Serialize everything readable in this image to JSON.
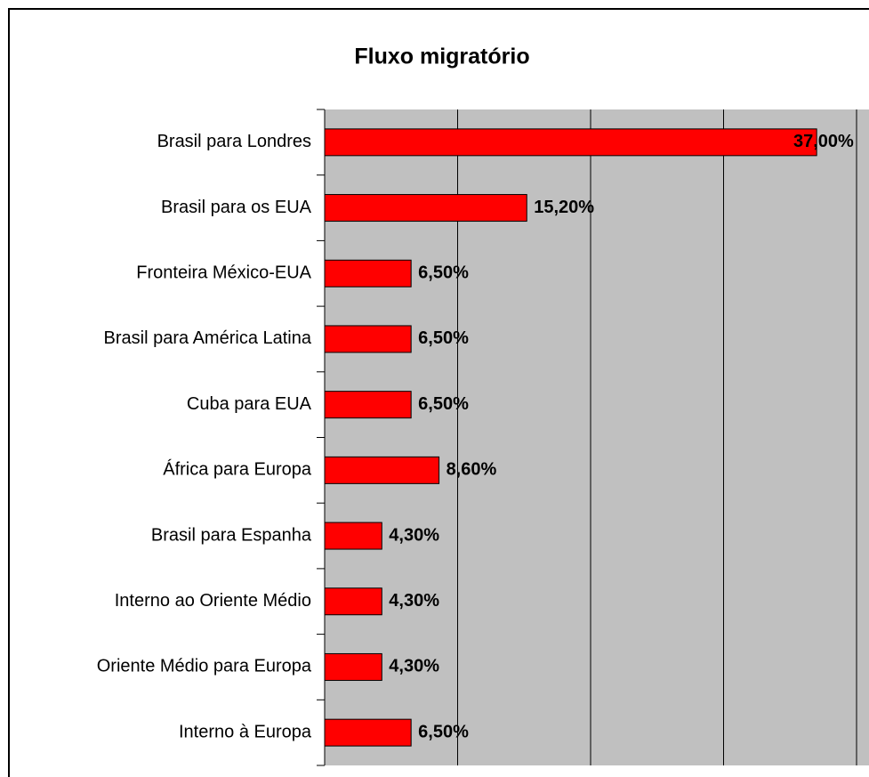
{
  "chart_data": {
    "type": "bar",
    "orientation": "horizontal",
    "title": "Fluxo migratório",
    "categories": [
      "Brasil para Londres",
      "Brasil para os EUA",
      "Fronteira México-EUA",
      "Brasil para América Latina",
      "Cuba para EUA",
      "África para Europa",
      "Brasil para Espanha",
      "Interno ao Oriente Médio",
      "Oriente Médio para Europa",
      "Interno à Europa"
    ],
    "values": [
      37.0,
      15.2,
      6.5,
      6.5,
      6.5,
      8.6,
      4.3,
      4.3,
      4.3,
      6.5
    ],
    "value_labels": [
      "37,00%",
      "15,20%",
      "6,50%",
      "6,50%",
      "6,50%",
      "8,60%",
      "4,30%",
      "4,30%",
      "4,30%",
      "6,50%"
    ],
    "color": "#ff0000",
    "xlim": [
      0,
      40
    ],
    "xticks": [
      0,
      10,
      20,
      30,
      40
    ],
    "grid": true
  }
}
